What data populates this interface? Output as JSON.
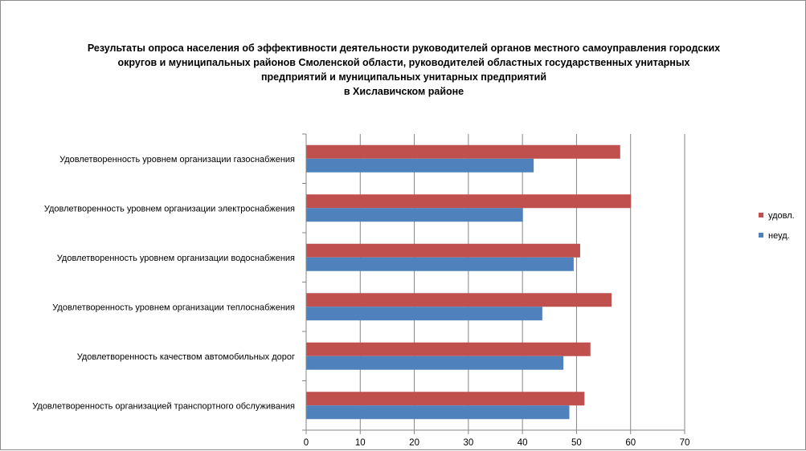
{
  "chart_data": {
    "type": "bar",
    "orientation": "horizontal",
    "title_lines": [
      "Результаты опроса населения об эффективности деятельности руководителей органов местного самоуправления городских",
      "округов и муниципальных районов Смоленской области, руководителей областных государственных унитарных",
      "предприятий и муниципальных унитарных предприятий",
      "в Хиславичском районе"
    ],
    "categories": [
      "Удовлетворенность  уровнем  организации газоснабжения",
      "Удовлетворенность  уровнем  организации электроснабжения",
      "Удовлетворенность  уровнем  организации водоснабжения",
      "Удовлетворенность  уровнем  организации теплоснабжения",
      "Удовлетворенность  качеством  автомобильных дорог",
      "Удовлетворенность  организацией  транспортного обслуживания"
    ],
    "series": [
      {
        "name": "удовл.",
        "color": "#C0504D",
        "values": [
          58,
          60,
          50.6,
          56.4,
          52.5,
          51.4
        ]
      },
      {
        "name": "неуд.",
        "color": "#4F81BD",
        "values": [
          42,
          40,
          49.4,
          43.6,
          47.5,
          48.6
        ]
      }
    ],
    "xlim": [
      0,
      70
    ],
    "xticks": [
      0,
      10,
      20,
      30,
      40,
      50,
      60,
      70
    ],
    "grid": true,
    "legend_position": "right"
  }
}
